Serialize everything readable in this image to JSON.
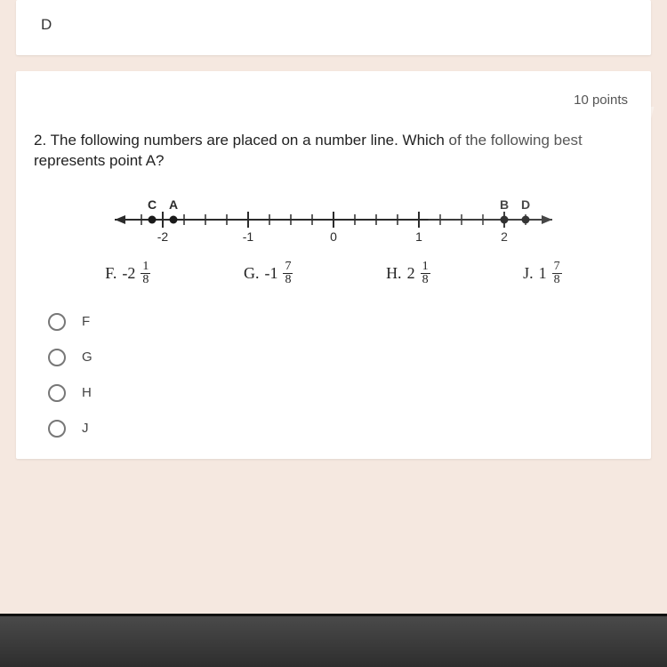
{
  "top": {
    "prev_answer": "D"
  },
  "question": {
    "points_label": "10 points",
    "number": "2.",
    "text": "The following numbers are placed on a number line.  Which of the following best represents point A?"
  },
  "numberline": {
    "min": -2.5,
    "max": 2.5,
    "major_ticks": [
      -2,
      -1,
      0,
      1,
      2
    ],
    "minor_step": 0.25,
    "points": [
      {
        "label": "C",
        "value": -2.125
      },
      {
        "label": "A",
        "value": -1.875
      },
      {
        "label": "B",
        "value": 2.0
      },
      {
        "label": "D",
        "value": 2.25
      }
    ],
    "axis_color": "#2b2b2b",
    "dot_color": "#1a1a1a",
    "text_color": "#2b2b2b",
    "font_size": 14
  },
  "answers": [
    {
      "key": "F",
      "prefix": "F.",
      "whole": "-2",
      "num": "1",
      "den": "8"
    },
    {
      "key": "G",
      "prefix": "G.",
      "whole": "-1",
      "num": "7",
      "den": "8"
    },
    {
      "key": "H",
      "prefix": "H.",
      "whole": "2",
      "num": "1",
      "den": "8"
    },
    {
      "key": "J",
      "prefix": "J.",
      "whole": "1",
      "num": "7",
      "den": "8"
    }
  ],
  "options": [
    {
      "key": "F",
      "label": "F"
    },
    {
      "key": "G",
      "label": "G"
    },
    {
      "key": "H",
      "label": "H"
    },
    {
      "key": "J",
      "label": "J"
    }
  ],
  "colors": {
    "page_bg": "#f5e8e0",
    "card_bg": "#ffffff",
    "text": "#222222",
    "muted": "#555555",
    "radio_border": "#777777"
  }
}
